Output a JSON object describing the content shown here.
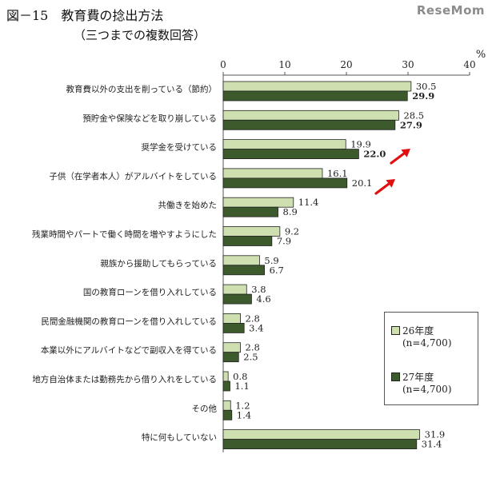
{
  "header": {
    "title": "図－15　教育費の捻出方法",
    "subtitle": "（三つまでの複数回答）",
    "logo": "ReseMom"
  },
  "colors": {
    "series_26": "#cfe0b0",
    "series_27": "#3d5a2c",
    "bar_border": "#222222",
    "arrow": "#e01010"
  },
  "annotations": [
    "arrow-upright",
    "arrow-upright"
  ],
  "chart_data": {
    "type": "bar",
    "orientation": "horizontal",
    "unit": "%",
    "xlim": [
      0,
      40
    ],
    "ticks": [
      0,
      10,
      20,
      30,
      40
    ],
    "categories": [
      "教育費以外の支出を削っている（節約）",
      "預貯金や保険などを取り崩している",
      "奨学金を受けている",
      "子供（在学者本人）がアルバイトをしている",
      "共働きを始めた",
      "残業時間やパートで働く時間を増やすようにした",
      "親族から援助してもらっている",
      "国の教育ローンを借り入れしている",
      "民間金融機関の教育ローンを借り入れしている",
      "本業以外にアルバイトなどで副収入を得ている",
      "地方自治体または勤務先から借り入れをしている",
      "その他",
      "特に何もしていない"
    ],
    "series": [
      {
        "name": "26年度",
        "n": "(n=4,700)",
        "values": [
          30.5,
          28.5,
          19.9,
          16.1,
          11.4,
          9.2,
          5.9,
          3.8,
          2.8,
          2.8,
          0.8,
          1.2,
          31.9
        ],
        "labels": [
          "30.5",
          "28.5",
          "19.9",
          "16.1",
          "11.4",
          "9.2",
          "5.9",
          "3.8",
          "2.8",
          "2.8",
          "0.8",
          "1.2",
          "31.9"
        ]
      },
      {
        "name": "27年度",
        "n": "(n=4,700)",
        "values": [
          29.9,
          27.9,
          22.0,
          20.1,
          8.9,
          7.9,
          6.7,
          4.6,
          3.4,
          2.5,
          1.1,
          1.4,
          31.4
        ],
        "labels": [
          "29.9",
          "27.9",
          "22.0",
          "20.1",
          "8.9",
          "7.9",
          "6.7",
          "4.6",
          "3.4",
          "2.5",
          "1.1",
          "1.4",
          "31.4"
        ]
      }
    ],
    "bold_labels": [
      0,
      1,
      2
    ],
    "grid": false,
    "legend": "bottom-right"
  }
}
